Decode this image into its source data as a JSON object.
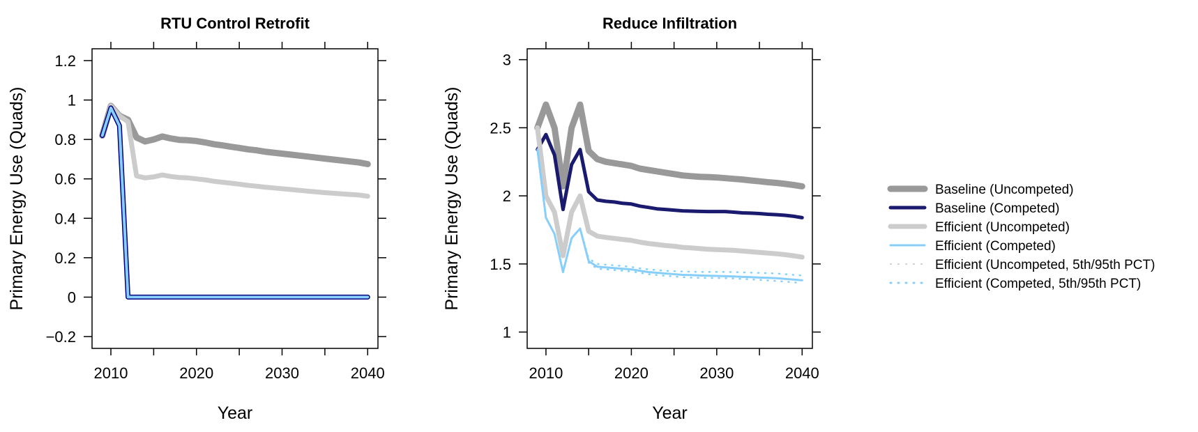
{
  "colors": {
    "baseline_uncompeted": "#999999",
    "baseline_competed": "#1a1a6e",
    "efficient_uncompeted": "#cccccc",
    "efficient_competed": "#87cefa",
    "efficient_competed_outline": "#000080"
  },
  "legend": {
    "placement": "right",
    "entries": [
      {
        "key": "baseline_uncompeted",
        "label": "Baseline (Uncompeted)"
      },
      {
        "key": "baseline_competed",
        "label": "Baseline (Competed)"
      },
      {
        "key": "efficient_uncompeted",
        "label": "Efficient (Uncompeted)"
      },
      {
        "key": "efficient_competed",
        "label": "Efficient (Competed)"
      },
      {
        "key": "efficient_uncompeted_pct",
        "label": "Efficient (Uncompeted, 5th/95th PCT)"
      },
      {
        "key": "efficient_competed_pct",
        "label": "Efficient (Competed, 5th/95th PCT)"
      }
    ]
  },
  "chart_data": [
    {
      "type": "line",
      "title": "RTU Control Retrofit",
      "xlabel": "Year",
      "ylabel": "Primary Energy Use (Quads)",
      "xlim": [
        2007.8,
        2041.2
      ],
      "ylim": [
        -0.26,
        1.26
      ],
      "xticks": [
        2010,
        2020,
        2030,
        2040
      ],
      "xticks_minor": [
        2005,
        2015,
        2025,
        2035
      ],
      "xticklabels": [
        "2010",
        "2020",
        "2030",
        "2040"
      ],
      "yticks": [
        -0.2,
        0,
        0.2,
        0.4,
        0.6,
        0.8,
        1,
        1.2
      ],
      "yticklabels": [
        "−0.2",
        "0",
        "0.2",
        "0.4",
        "0.6",
        "0.8",
        "1",
        "1.2"
      ],
      "grid": false,
      "x": [
        2009,
        2010,
        2011,
        2012,
        2013,
        2014,
        2015,
        2016,
        2017,
        2018,
        2019,
        2020,
        2021,
        2022,
        2023,
        2024,
        2025,
        2026,
        2027,
        2028,
        2029,
        2030,
        2031,
        2032,
        2033,
        2034,
        2035,
        2036,
        2037,
        2038,
        2039,
        2040
      ],
      "series": [
        {
          "key": "baseline_uncompeted",
          "values": [
            0.82,
            0.97,
            0.92,
            0.9,
            0.81,
            0.79,
            0.8,
            0.815,
            0.805,
            0.798,
            0.796,
            0.792,
            0.785,
            0.776,
            0.77,
            0.763,
            0.757,
            0.75,
            0.745,
            0.738,
            0.733,
            0.728,
            0.723,
            0.718,
            0.713,
            0.708,
            0.703,
            0.698,
            0.693,
            0.688,
            0.683,
            0.675
          ]
        },
        {
          "key": "efficient_uncompeted",
          "values": [
            0.82,
            0.97,
            0.92,
            0.89,
            0.615,
            0.605,
            0.61,
            0.62,
            0.612,
            0.607,
            0.605,
            0.6,
            0.595,
            0.588,
            0.583,
            0.578,
            0.573,
            0.567,
            0.563,
            0.558,
            0.554,
            0.55,
            0.546,
            0.542,
            0.538,
            0.534,
            0.53,
            0.527,
            0.524,
            0.521,
            0.518,
            0.512
          ]
        },
        {
          "key": "baseline_competed",
          "values": [
            0.82,
            0.96,
            0.87,
            0.0,
            0.0,
            0.0,
            0.0,
            0.0,
            0.0,
            0.0,
            0.0,
            0.0,
            0.0,
            0.0,
            0.0,
            0.0,
            0.0,
            0.0,
            0.0,
            0.0,
            0.0,
            0.0,
            0.0,
            0.0,
            0.0,
            0.0,
            0.0,
            0.0,
            0.0,
            0.0,
            0.0,
            0.0
          ]
        },
        {
          "key": "efficient_competed",
          "values": [
            0.82,
            0.96,
            0.87,
            0.0,
            0.0,
            0.0,
            0.0,
            0.0,
            0.0,
            0.0,
            0.0,
            0.0,
            0.0,
            0.0,
            0.0,
            0.0,
            0.0,
            0.0,
            0.0,
            0.0,
            0.0,
            0.0,
            0.0,
            0.0,
            0.0,
            0.0,
            0.0,
            0.0,
            0.0,
            0.0,
            0.0,
            0.0
          ]
        }
      ]
    },
    {
      "type": "line",
      "title": "Reduce Infiltration",
      "xlabel": "Year",
      "ylabel": "Primary Energy Use (Quads)",
      "xlim": [
        2007.8,
        2041.2
      ],
      "ylim": [
        0.88,
        3.08
      ],
      "xticks": [
        2010,
        2020,
        2030,
        2040
      ],
      "xticks_minor": [
        2005,
        2015,
        2025,
        2035
      ],
      "xticklabels": [
        "2010",
        "2020",
        "2030",
        "2040"
      ],
      "yticks": [
        1,
        1.5,
        2,
        2.5,
        3
      ],
      "yticklabels": [
        "1",
        "1.5",
        "2",
        "2.5",
        "3"
      ],
      "grid": false,
      "x": [
        2009,
        2010,
        2011,
        2012,
        2013,
        2014,
        2015,
        2016,
        2017,
        2018,
        2019,
        2020,
        2021,
        2022,
        2023,
        2024,
        2025,
        2026,
        2027,
        2028,
        2029,
        2030,
        2031,
        2032,
        2033,
        2034,
        2035,
        2036,
        2037,
        2038,
        2039,
        2040
      ],
      "series": [
        {
          "key": "baseline_uncompeted",
          "values": [
            2.5,
            2.67,
            2.5,
            2.07,
            2.5,
            2.67,
            2.33,
            2.27,
            2.25,
            2.24,
            2.23,
            2.22,
            2.2,
            2.19,
            2.18,
            2.17,
            2.16,
            2.15,
            2.145,
            2.14,
            2.138,
            2.135,
            2.13,
            2.125,
            2.12,
            2.113,
            2.107,
            2.1,
            2.095,
            2.088,
            2.08,
            2.07
          ]
        },
        {
          "key": "baseline_competed",
          "values": [
            2.34,
            2.45,
            2.3,
            1.9,
            2.23,
            2.34,
            2.03,
            1.97,
            1.96,
            1.955,
            1.945,
            1.94,
            1.925,
            1.915,
            1.905,
            1.9,
            1.895,
            1.89,
            1.888,
            1.886,
            1.885,
            1.885,
            1.885,
            1.88,
            1.875,
            1.873,
            1.87,
            1.865,
            1.862,
            1.857,
            1.85,
            1.84
          ]
        },
        {
          "key": "efficient_uncompeted",
          "values": [
            2.5,
            2.0,
            1.88,
            1.56,
            1.88,
            2.0,
            1.74,
            1.705,
            1.695,
            1.688,
            1.68,
            1.673,
            1.66,
            1.65,
            1.643,
            1.635,
            1.63,
            1.622,
            1.618,
            1.613,
            1.608,
            1.605,
            1.603,
            1.6,
            1.595,
            1.59,
            1.585,
            1.58,
            1.575,
            1.568,
            1.56,
            1.55
          ]
        },
        {
          "key": "efficient_competed",
          "values": [
            2.34,
            1.84,
            1.72,
            1.44,
            1.69,
            1.76,
            1.52,
            1.48,
            1.475,
            1.47,
            1.465,
            1.46,
            1.45,
            1.44,
            1.435,
            1.43,
            1.425,
            1.42,
            1.418,
            1.415,
            1.413,
            1.412,
            1.41,
            1.408,
            1.405,
            1.403,
            1.4,
            1.398,
            1.395,
            1.39,
            1.385,
            1.38
          ]
        },
        {
          "key": "efficient_competed_pct_upper",
          "values": [
            2.34,
            1.84,
            1.72,
            1.44,
            1.69,
            1.76,
            1.54,
            1.5,
            1.495,
            1.49,
            1.485,
            1.478,
            1.468,
            1.46,
            1.455,
            1.45,
            1.447,
            1.445,
            1.443,
            1.442,
            1.442,
            1.442,
            1.442,
            1.44,
            1.438,
            1.436,
            1.434,
            1.432,
            1.43,
            1.425,
            1.42,
            1.415
          ]
        },
        {
          "key": "efficient_competed_pct_lower",
          "values": [
            2.34,
            1.84,
            1.72,
            1.44,
            1.69,
            1.76,
            1.51,
            1.465,
            1.46,
            1.455,
            1.45,
            1.445,
            1.435,
            1.425,
            1.418,
            1.413,
            1.408,
            1.403,
            1.4,
            1.398,
            1.397,
            1.396,
            1.395,
            1.393,
            1.39,
            1.387,
            1.383,
            1.379,
            1.375,
            1.37,
            1.365,
            1.36
          ]
        }
      ]
    }
  ]
}
